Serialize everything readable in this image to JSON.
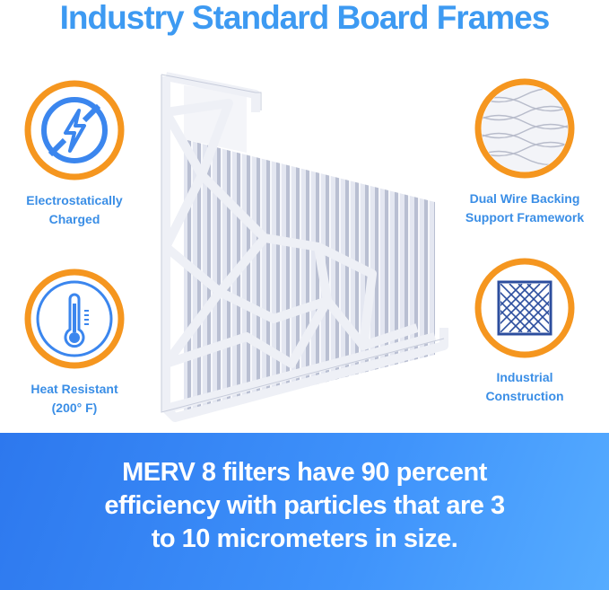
{
  "title": "Industry Standard Board Frames",
  "features": [
    {
      "icon": "no-static-lightning-icon",
      "line1": "Electrostatically",
      "line2": "Charged"
    },
    {
      "icon": "thermometer-icon",
      "line1": "Heat Resistant",
      "line2": "(200° F)"
    },
    {
      "icon": "wire-mesh-icon",
      "line1": "Dual Wire Backing",
      "line2": "Support Framework"
    },
    {
      "icon": "grid-frame-icon",
      "line1": "Industrial",
      "line2": "Construction"
    }
  ],
  "banner": {
    "line1": "MERV 8 filters have 90 percent",
    "line2": "efficiency with particles that are 3",
    "line3": "to 10 micrometers in size."
  },
  "colors": {
    "title": "#3d9af2",
    "ring": "#f5961f",
    "icon": "#3b86ee",
    "banner": "#3a8cf6"
  }
}
